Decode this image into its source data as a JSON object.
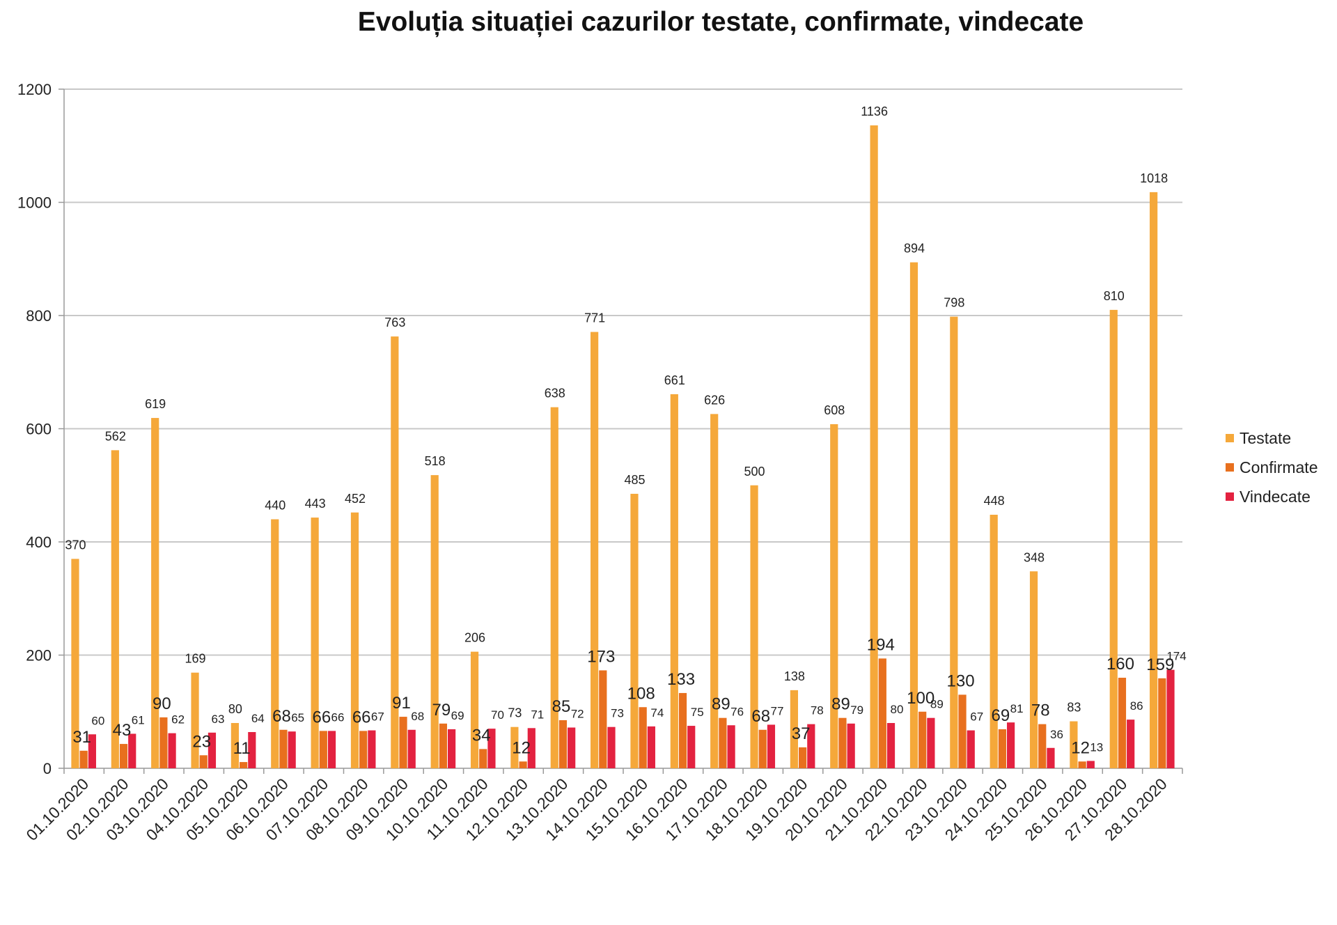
{
  "chart_data": {
    "type": "bar",
    "title": "Evoluția situației cazurilor testate, confirmate, vindecate",
    "xlabel": "",
    "ylabel": "",
    "ylim": [
      0,
      1200
    ],
    "yticks": [
      "0",
      "200",
      "400",
      "600",
      "800",
      "1000",
      "1200"
    ],
    "grid": true,
    "legend_position": "right",
    "categories": [
      "01.10.2020",
      "02.10.2020",
      "03.10.2020",
      "04.10.2020",
      "05.10.2020",
      "06.10.2020",
      "07.10.2020",
      "08.10.2020",
      "09.10.2020",
      "10.10.2020",
      "11.10.2020",
      "12.10.2020",
      "13.10.2020",
      "14.10.2020",
      "15.10.2020",
      "16.10.2020",
      "17.10.2020",
      "18.10.2020",
      "19.10.2020",
      "20.10.2020",
      "21.10.2020",
      "22.10.2020",
      "23.10.2020",
      "24.10.2020",
      "25.10.2020",
      "26.10.2020",
      "27.10.2020",
      "28.10.2020"
    ],
    "series": [
      {
        "name": "Testate",
        "color": "#f5a83a",
        "values": [
          370,
          562,
          619,
          169,
          80,
          440,
          443,
          452,
          763,
          518,
          206,
          73,
          638,
          771,
          485,
          661,
          626,
          500,
          138,
          608,
          1136,
          894,
          798,
          448,
          348,
          83,
          810,
          1018
        ]
      },
      {
        "name": "Confirmate",
        "color": "#e8701e",
        "values": [
          31,
          43,
          90,
          23,
          11,
          68,
          66,
          66,
          91,
          79,
          34,
          12,
          85,
          173,
          108,
          133,
          89,
          68,
          37,
          89,
          194,
          100,
          130,
          69,
          78,
          12,
          160,
          159
        ]
      },
      {
        "name": "Vindecate",
        "color": "#e32240",
        "values": [
          60,
          61,
          62,
          63,
          64,
          65,
          66,
          67,
          68,
          69,
          70,
          71,
          72,
          73,
          74,
          75,
          76,
          77,
          78,
          79,
          80,
          89,
          67,
          81,
          36,
          13,
          86,
          174
        ]
      }
    ]
  }
}
